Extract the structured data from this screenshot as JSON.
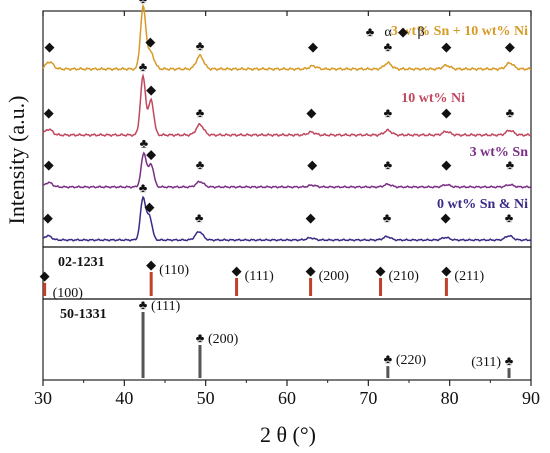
{
  "chart_data": {
    "type": "line",
    "xlabel": "2 θ (°)",
    "ylabel": "Intensity (a.u.)",
    "xlim": [
      30,
      90
    ],
    "xticks": [
      "30",
      "40",
      "50",
      "60",
      "70",
      "80",
      "90"
    ],
    "legend": {
      "club_label": "α",
      "diamond_label": "β",
      "placement": "top-right"
    },
    "series": [
      {
        "name": "3 wt% Sn + 10 wt% Ni",
        "color": "#d79a27",
        "peaks": [
          {
            "x": 30.8,
            "h": 0.12,
            "marker": "diamond"
          },
          {
            "x": 42.3,
            "h": 1.0,
            "marker": "club"
          },
          {
            "x": 43.2,
            "h": 0.28,
            "marker": "diamond"
          },
          {
            "x": 49.3,
            "h": 0.22,
            "marker": "club"
          },
          {
            "x": 63.2,
            "h": 0.05,
            "marker": "diamond"
          },
          {
            "x": 72.4,
            "h": 0.1,
            "marker": "club"
          },
          {
            "x": 79.6,
            "h": 0.06,
            "marker": "diamond"
          },
          {
            "x": 87.4,
            "h": 0.1,
            "marker": "diamond"
          }
        ]
      },
      {
        "name": "10 wt% Ni",
        "color": "#c0485e",
        "peaks": [
          {
            "x": 30.7,
            "h": 0.1,
            "marker": "diamond"
          },
          {
            "x": 42.3,
            "h": 1.0,
            "marker": "club"
          },
          {
            "x": 43.3,
            "h": 0.6,
            "marker": "diamond"
          },
          {
            "x": 49.3,
            "h": 0.18,
            "marker": "club"
          },
          {
            "x": 63.0,
            "h": 0.05,
            "marker": "diamond"
          },
          {
            "x": 72.4,
            "h": 0.08,
            "marker": "club"
          },
          {
            "x": 79.6,
            "h": 0.06,
            "marker": "diamond"
          },
          {
            "x": 87.4,
            "h": 0.08,
            "marker": "club"
          }
        ]
      },
      {
        "name": "3 wt% Sn",
        "color": "#7a2e86",
        "peaks": [
          {
            "x": 30.7,
            "h": 0.1,
            "marker": "diamond"
          },
          {
            "x": 42.4,
            "h": 0.75,
            "marker": "club"
          },
          {
            "x": 43.3,
            "h": 0.5,
            "marker": "diamond"
          },
          {
            "x": 49.3,
            "h": 0.12,
            "marker": "club"
          },
          {
            "x": 63.1,
            "h": 0.04,
            "marker": "diamond"
          },
          {
            "x": 72.4,
            "h": 0.06,
            "marker": "club"
          },
          {
            "x": 79.6,
            "h": 0.05,
            "marker": "diamond"
          },
          {
            "x": 87.4,
            "h": 0.05,
            "marker": "club"
          }
        ]
      },
      {
        "name": "0 wt% Sn & Ni",
        "color": "#3a2a86",
        "peaks": [
          {
            "x": 30.6,
            "h": 0.1,
            "marker": "diamond"
          },
          {
            "x": 42.3,
            "h": 1.0,
            "marker": "club"
          },
          {
            "x": 43.1,
            "h": 0.55,
            "marker": "diamond"
          },
          {
            "x": 49.2,
            "h": 0.2,
            "marker": "club"
          },
          {
            "x": 62.9,
            "h": 0.05,
            "marker": "diamond"
          },
          {
            "x": 72.3,
            "h": 0.08,
            "marker": "club"
          },
          {
            "x": 79.5,
            "h": 0.06,
            "marker": "diamond"
          },
          {
            "x": 87.3,
            "h": 0.1,
            "marker": "club"
          }
        ]
      }
    ],
    "references": [
      {
        "id": "02-1231",
        "color": "#c0412a",
        "marker": "diamond",
        "lines": [
          {
            "x": 30.2,
            "h": 0.55,
            "hkl": "(100)"
          },
          {
            "x": 43.3,
            "h": 1.0,
            "hkl": "(110)"
          },
          {
            "x": 53.8,
            "h": 0.75,
            "hkl": "(111)"
          },
          {
            "x": 62.9,
            "h": 0.75,
            "hkl": "(200)"
          },
          {
            "x": 71.5,
            "h": 0.75,
            "hkl": "(210)"
          },
          {
            "x": 79.6,
            "h": 0.75,
            "hkl": "(211)"
          }
        ]
      },
      {
        "id": "50-1331",
        "color": "#555555",
        "marker": "club",
        "lines": [
          {
            "x": 42.3,
            "h": 1.0,
            "hkl": "(111)"
          },
          {
            "x": 49.3,
            "h": 0.5,
            "hkl": "(200)"
          },
          {
            "x": 72.4,
            "h": 0.18,
            "hkl": "(220)"
          },
          {
            "x": 87.3,
            "h": 0.15,
            "hkl": "(311)"
          }
        ]
      }
    ]
  }
}
